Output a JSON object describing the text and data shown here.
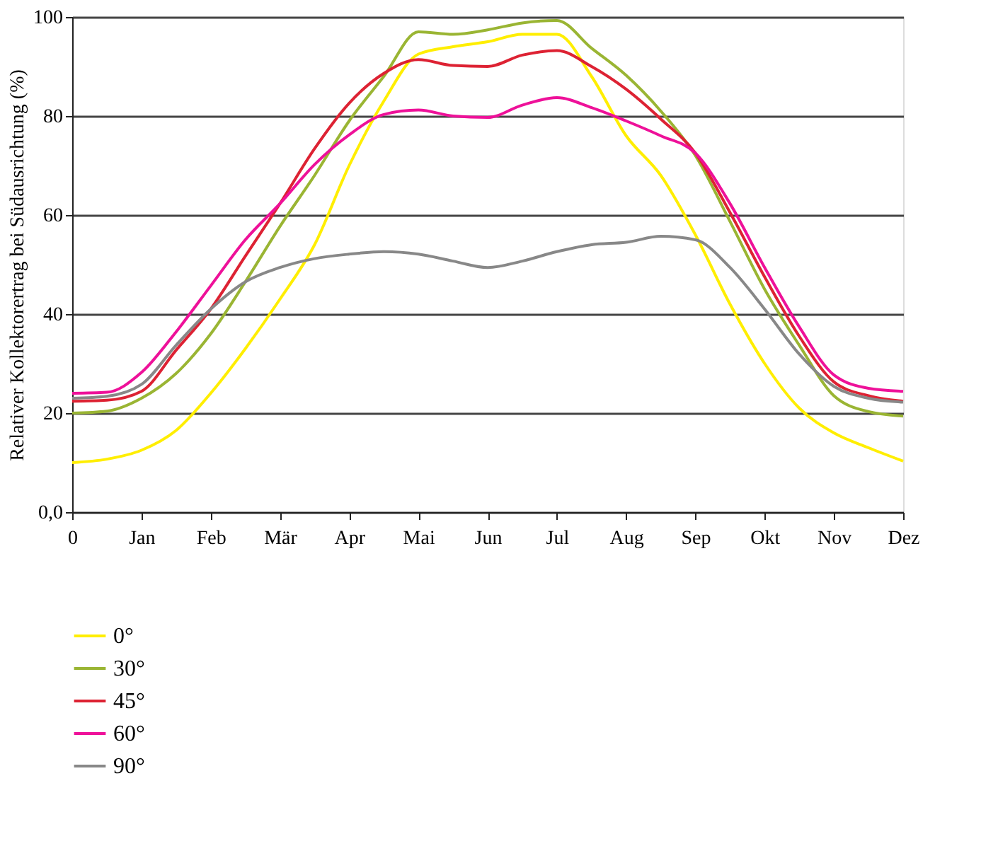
{
  "chart_data": {
    "type": "line",
    "ylabel": "Relativer Kollektorertrag bei Südausrichtung (%)",
    "categories": [
      "0",
      null,
      "Jan",
      null,
      "Feb",
      null,
      "Mär",
      null,
      "Apr",
      null,
      "Mai",
      null,
      "Jun",
      null,
      "Jul",
      null,
      "Aug",
      null,
      "Sep",
      null,
      "Okt",
      null,
      "Nov",
      null,
      "Dez"
    ],
    "ylim": [
      0,
      100
    ],
    "yticks": [
      {
        "value": 0,
        "label": "0,0"
      },
      20,
      40,
      60,
      80,
      100
    ],
    "grid": "y",
    "legend": "bottom",
    "marker": "none",
    "line_style": "solid",
    "series": [
      {
        "name": "0°",
        "color": "#ffee00",
        "values": [
          10,
          10.7,
          12.5,
          16.5,
          24,
          33,
          43,
          54,
          70,
          83,
          92.5,
          94,
          95,
          96.5,
          96.5,
          88,
          76,
          68,
          56,
          42,
          30,
          21,
          16,
          13,
          10.3
        ]
      },
      {
        "name": "30°",
        "color": "#9ab533",
        "values": [
          20,
          20.4,
          23,
          28,
          36,
          46.5,
          57.7,
          68,
          79,
          88,
          97,
          96.5,
          97.4,
          98.8,
          99.3,
          93.7,
          88.2,
          81,
          72,
          58.7,
          45,
          33.7,
          23.5,
          20.3,
          19.4
        ]
      },
      {
        "name": "45°",
        "color": "#dd2233",
        "values": [
          22.4,
          22.6,
          24.4,
          32.7,
          41,
          51.7,
          62.3,
          73.4,
          82.6,
          88.6,
          91.4,
          90.2,
          90,
          92.3,
          93.2,
          90,
          85.4,
          79.4,
          72.5,
          60.5,
          47.5,
          35.5,
          26.3,
          23.5,
          22.4
        ]
      },
      {
        "name": "60°",
        "color": "#ee1199",
        "values": [
          24,
          24.2,
          28.2,
          36.4,
          45.7,
          55,
          62.3,
          70.2,
          76.2,
          80.3,
          81.2,
          80,
          79.7,
          82.2,
          83.7,
          81.7,
          79,
          76,
          72.5,
          62.3,
          49.4,
          37.4,
          27.7,
          25,
          24.4
        ]
      },
      {
        "name": "90°",
        "color": "#888888",
        "values": [
          23,
          23.4,
          25.8,
          33.7,
          41,
          46.5,
          49.4,
          51.2,
          52.1,
          52.6,
          52.1,
          50.7,
          49.4,
          50.7,
          52.6,
          54,
          54.5,
          55.7,
          55,
          49.4,
          41,
          31.9,
          25.4,
          23,
          22.2
        ]
      }
    ]
  }
}
